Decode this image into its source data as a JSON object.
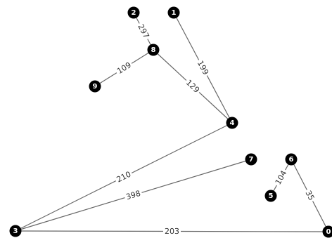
{
  "graph": {
    "nodes": [
      {
        "id": "0",
        "label": "0"
      },
      {
        "id": "1",
        "label": "1"
      },
      {
        "id": "2",
        "label": "2"
      },
      {
        "id": "3",
        "label": "3"
      },
      {
        "id": "4",
        "label": "4"
      },
      {
        "id": "5",
        "label": "5"
      },
      {
        "id": "6",
        "label": "6"
      },
      {
        "id": "7",
        "label": "7"
      },
      {
        "id": "8",
        "label": "8"
      },
      {
        "id": "9",
        "label": "9"
      }
    ],
    "edges": [
      {
        "source": "2",
        "target": "8",
        "weight": "297"
      },
      {
        "source": "9",
        "target": "8",
        "weight": "109"
      },
      {
        "source": "8",
        "target": "4",
        "weight": "129"
      },
      {
        "source": "1",
        "target": "4",
        "weight": "199"
      },
      {
        "source": "4",
        "target": "3",
        "weight": "210"
      },
      {
        "source": "7",
        "target": "3",
        "weight": "398"
      },
      {
        "source": "3",
        "target": "0",
        "weight": "203"
      },
      {
        "source": "6",
        "target": "5",
        "weight": "104"
      },
      {
        "source": "6",
        "target": "0",
        "weight": "35"
      }
    ]
  },
  "colors": {
    "node_fill": "#000000",
    "node_text": "#ffffff",
    "edge": "#666666",
    "label_text": "#333333",
    "background": "#ffffff"
  }
}
